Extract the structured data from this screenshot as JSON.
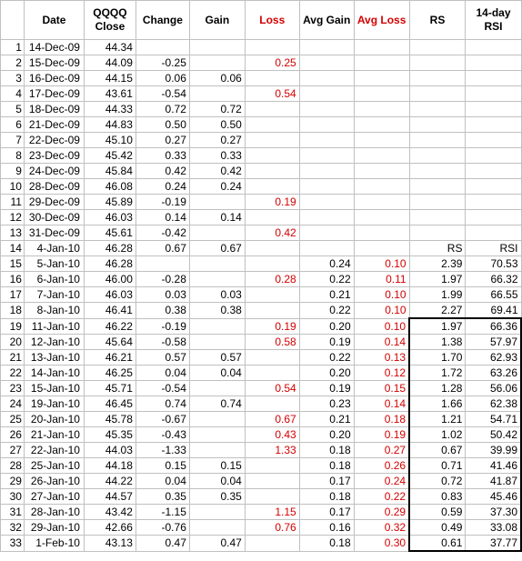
{
  "colors": {
    "loss_red": "#d40000",
    "grid": "#c0c0c0",
    "text": "#000000"
  },
  "headers": {
    "date": "Date",
    "close": "QQQQ Close",
    "change": "Change",
    "gain": "Gain",
    "loss": "Loss",
    "avg_gain": "Avg Gain",
    "avg_loss": "Avg Loss",
    "rs": "RS",
    "rsi": "14-day RSI"
  },
  "rows": [
    {
      "n": "1",
      "date": "14-Dec-09",
      "close": "44.34",
      "change": "",
      "gain": "",
      "loss": "",
      "avg_gain": "",
      "avg_loss": "",
      "rs": "",
      "rsi": ""
    },
    {
      "n": "2",
      "date": "15-Dec-09",
      "close": "44.09",
      "change": "-0.25",
      "gain": "",
      "loss": "0.25",
      "avg_gain": "",
      "avg_loss": "",
      "rs": "",
      "rsi": ""
    },
    {
      "n": "3",
      "date": "16-Dec-09",
      "close": "44.15",
      "change": "0.06",
      "gain": "0.06",
      "loss": "",
      "avg_gain": "",
      "avg_loss": "",
      "rs": "",
      "rsi": ""
    },
    {
      "n": "4",
      "date": "17-Dec-09",
      "close": "43.61",
      "change": "-0.54",
      "gain": "",
      "loss": "0.54",
      "avg_gain": "",
      "avg_loss": "",
      "rs": "",
      "rsi": ""
    },
    {
      "n": "5",
      "date": "18-Dec-09",
      "close": "44.33",
      "change": "0.72",
      "gain": "0.72",
      "loss": "",
      "avg_gain": "",
      "avg_loss": "",
      "rs": "",
      "rsi": ""
    },
    {
      "n": "6",
      "date": "21-Dec-09",
      "close": "44.83",
      "change": "0.50",
      "gain": "0.50",
      "loss": "",
      "avg_gain": "",
      "avg_loss": "",
      "rs": "",
      "rsi": ""
    },
    {
      "n": "7",
      "date": "22-Dec-09",
      "close": "45.10",
      "change": "0.27",
      "gain": "0.27",
      "loss": "",
      "avg_gain": "",
      "avg_loss": "",
      "rs": "",
      "rsi": ""
    },
    {
      "n": "8",
      "date": "23-Dec-09",
      "close": "45.42",
      "change": "0.33",
      "gain": "0.33",
      "loss": "",
      "avg_gain": "",
      "avg_loss": "",
      "rs": "",
      "rsi": ""
    },
    {
      "n": "9",
      "date": "24-Dec-09",
      "close": "45.84",
      "change": "0.42",
      "gain": "0.42",
      "loss": "",
      "avg_gain": "",
      "avg_loss": "",
      "rs": "",
      "rsi": ""
    },
    {
      "n": "10",
      "date": "28-Dec-09",
      "close": "46.08",
      "change": "0.24",
      "gain": "0.24",
      "loss": "",
      "avg_gain": "",
      "avg_loss": "",
      "rs": "",
      "rsi": ""
    },
    {
      "n": "11",
      "date": "29-Dec-09",
      "close": "45.89",
      "change": "-0.19",
      "gain": "",
      "loss": "0.19",
      "avg_gain": "",
      "avg_loss": "",
      "rs": "",
      "rsi": ""
    },
    {
      "n": "12",
      "date": "30-Dec-09",
      "close": "46.03",
      "change": "0.14",
      "gain": "0.14",
      "loss": "",
      "avg_gain": "",
      "avg_loss": "",
      "rs": "",
      "rsi": ""
    },
    {
      "n": "13",
      "date": "31-Dec-09",
      "close": "45.61",
      "change": "-0.42",
      "gain": "",
      "loss": "0.42",
      "avg_gain": "",
      "avg_loss": "",
      "rs": "",
      "rsi": ""
    },
    {
      "n": "14",
      "date": "4-Jan-10",
      "close": "46.28",
      "change": "0.67",
      "gain": "0.67",
      "loss": "",
      "avg_gain": "",
      "avg_loss": "",
      "rs": "RS",
      "rsi": "RSI"
    },
    {
      "n": "15",
      "date": "5-Jan-10",
      "close": "46.28",
      "change": "",
      "gain": "",
      "loss": "",
      "avg_gain": "0.24",
      "avg_loss": "0.10",
      "rs": "2.39",
      "rsi": "70.53"
    },
    {
      "n": "16",
      "date": "6-Jan-10",
      "close": "46.00",
      "change": "-0.28",
      "gain": "",
      "loss": "0.28",
      "avg_gain": "0.22",
      "avg_loss": "0.11",
      "rs": "1.97",
      "rsi": "66.32"
    },
    {
      "n": "17",
      "date": "7-Jan-10",
      "close": "46.03",
      "change": "0.03",
      "gain": "0.03",
      "loss": "",
      "avg_gain": "0.21",
      "avg_loss": "0.10",
      "rs": "1.99",
      "rsi": "66.55"
    },
    {
      "n": "18",
      "date": "8-Jan-10",
      "close": "46.41",
      "change": "0.38",
      "gain": "0.38",
      "loss": "",
      "avg_gain": "0.22",
      "avg_loss": "0.10",
      "rs": "2.27",
      "rsi": "69.41"
    },
    {
      "n": "19",
      "date": "11-Jan-10",
      "close": "46.22",
      "change": "-0.19",
      "gain": "",
      "loss": "0.19",
      "avg_gain": "0.20",
      "avg_loss": "0.10",
      "rs": "1.97",
      "rsi": "66.36"
    },
    {
      "n": "20",
      "date": "12-Jan-10",
      "close": "45.64",
      "change": "-0.58",
      "gain": "",
      "loss": "0.58",
      "avg_gain": "0.19",
      "avg_loss": "0.14",
      "rs": "1.38",
      "rsi": "57.97"
    },
    {
      "n": "21",
      "date": "13-Jan-10",
      "close": "46.21",
      "change": "0.57",
      "gain": "0.57",
      "loss": "",
      "avg_gain": "0.22",
      "avg_loss": "0.13",
      "rs": "1.70",
      "rsi": "62.93"
    },
    {
      "n": "22",
      "date": "14-Jan-10",
      "close": "46.25",
      "change": "0.04",
      "gain": "0.04",
      "loss": "",
      "avg_gain": "0.20",
      "avg_loss": "0.12",
      "rs": "1.72",
      "rsi": "63.26"
    },
    {
      "n": "23",
      "date": "15-Jan-10",
      "close": "45.71",
      "change": "-0.54",
      "gain": "",
      "loss": "0.54",
      "avg_gain": "0.19",
      "avg_loss": "0.15",
      "rs": "1.28",
      "rsi": "56.06"
    },
    {
      "n": "24",
      "date": "19-Jan-10",
      "close": "46.45",
      "change": "0.74",
      "gain": "0.74",
      "loss": "",
      "avg_gain": "0.23",
      "avg_loss": "0.14",
      "rs": "1.66",
      "rsi": "62.38"
    },
    {
      "n": "25",
      "date": "20-Jan-10",
      "close": "45.78",
      "change": "-0.67",
      "gain": "",
      "loss": "0.67",
      "avg_gain": "0.21",
      "avg_loss": "0.18",
      "rs": "1.21",
      "rsi": "54.71"
    },
    {
      "n": "26",
      "date": "21-Jan-10",
      "close": "45.35",
      "change": "-0.43",
      "gain": "",
      "loss": "0.43",
      "avg_gain": "0.20",
      "avg_loss": "0.19",
      "rs": "1.02",
      "rsi": "50.42"
    },
    {
      "n": "27",
      "date": "22-Jan-10",
      "close": "44.03",
      "change": "-1.33",
      "gain": "",
      "loss": "1.33",
      "avg_gain": "0.18",
      "avg_loss": "0.27",
      "rs": "0.67",
      "rsi": "39.99"
    },
    {
      "n": "28",
      "date": "25-Jan-10",
      "close": "44.18",
      "change": "0.15",
      "gain": "0.15",
      "loss": "",
      "avg_gain": "0.18",
      "avg_loss": "0.26",
      "rs": "0.71",
      "rsi": "41.46"
    },
    {
      "n": "29",
      "date": "26-Jan-10",
      "close": "44.22",
      "change": "0.04",
      "gain": "0.04",
      "loss": "",
      "avg_gain": "0.17",
      "avg_loss": "0.24",
      "rs": "0.72",
      "rsi": "41.87"
    },
    {
      "n": "30",
      "date": "27-Jan-10",
      "close": "44.57",
      "change": "0.35",
      "gain": "0.35",
      "loss": "",
      "avg_gain": "0.18",
      "avg_loss": "0.22",
      "rs": "0.83",
      "rsi": "45.46"
    },
    {
      "n": "31",
      "date": "28-Jan-10",
      "close": "43.42",
      "change": "-1.15",
      "gain": "",
      "loss": "1.15",
      "avg_gain": "0.17",
      "avg_loss": "0.29",
      "rs": "0.59",
      "rsi": "37.30"
    },
    {
      "n": "32",
      "date": "29-Jan-10",
      "close": "42.66",
      "change": "-0.76",
      "gain": "",
      "loss": "0.76",
      "avg_gain": "0.16",
      "avg_loss": "0.32",
      "rs": "0.49",
      "rsi": "33.08"
    },
    {
      "n": "33",
      "date": "1-Feb-10",
      "close": "43.13",
      "change": "0.47",
      "gain": "0.47",
      "loss": "",
      "avg_gain": "0.18",
      "avg_loss": "0.30",
      "rs": "0.61",
      "rsi": "37.77"
    }
  ]
}
